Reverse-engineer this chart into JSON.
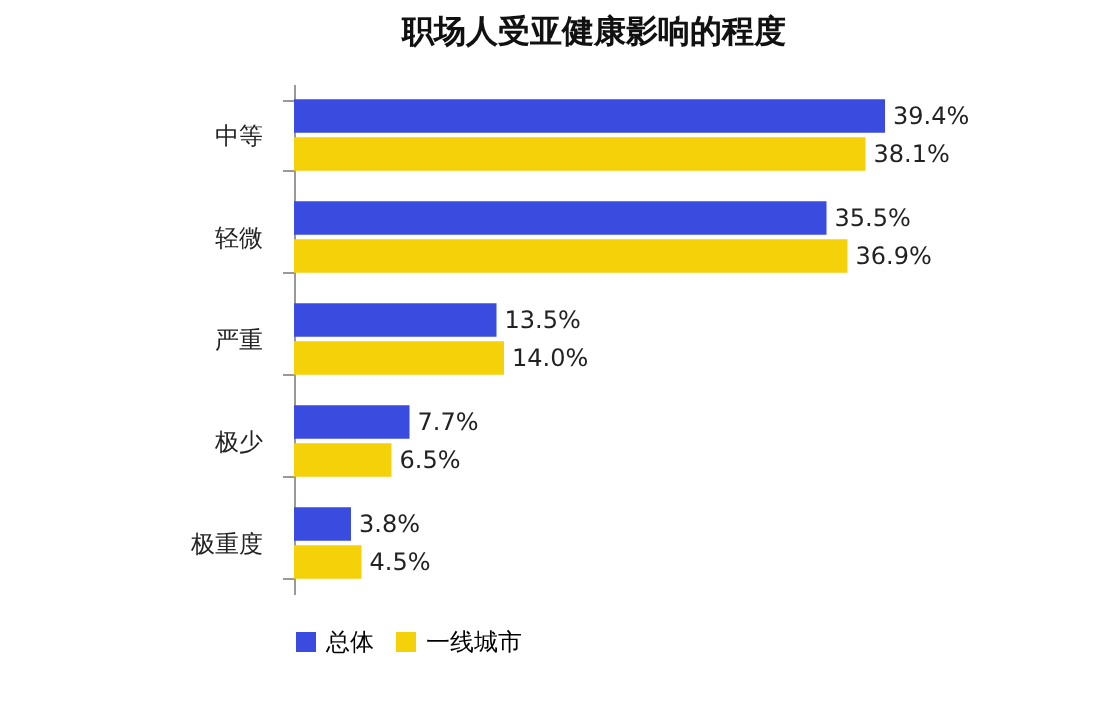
{
  "chart_data": {
    "type": "bar",
    "orientation": "horizontal",
    "title": "职场人受亚健康影响的程度",
    "categories": [
      "中等",
      "轻微",
      "严重",
      "极少",
      "极重度"
    ],
    "legend": "bottom",
    "series": [
      {
        "name": "总体",
        "color": "#3a4be0",
        "values": [
          39.4,
          35.5,
          13.5,
          7.7,
          3.8
        ],
        "value_labels": [
          "39.4%",
          "35.5%",
          "13.5%",
          "7.7%",
          "3.8%"
        ]
      },
      {
        "name": "一线城市",
        "color": "#f5d10a",
        "values": [
          38.1,
          36.9,
          14.0,
          6.5,
          4.5
        ],
        "value_labels": [
          "38.1%",
          "36.9%",
          "14.0%",
          "6.5%",
          "4.5%"
        ]
      }
    ]
  }
}
